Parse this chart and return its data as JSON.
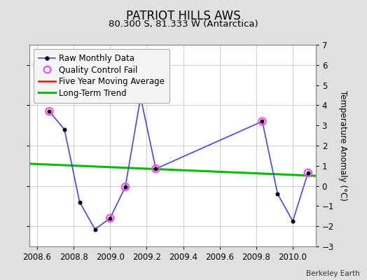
{
  "title": "PATRIOT HILLS AWS",
  "subtitle": "80.300 S, 81.333 W (Antarctica)",
  "attribution": "Berkeley Earth",
  "ylabel": "Temperature Anomaly (°C)",
  "xlim": [
    2008.558,
    2010.125
  ],
  "ylim": [
    -3,
    7
  ],
  "yticks": [
    -3,
    -2,
    -1,
    0,
    1,
    2,
    3,
    4,
    5,
    6,
    7
  ],
  "xticks": [
    2008.6,
    2008.8,
    2009.0,
    2009.2,
    2009.4,
    2009.6,
    2009.8,
    2010.0
  ],
  "raw_x": [
    2008.667,
    2008.75,
    2008.833,
    2008.917,
    2009.0,
    2009.083,
    2009.167,
    2009.25,
    2009.833,
    2009.917,
    2010.0,
    2010.083
  ],
  "raw_y": [
    3.7,
    2.8,
    -0.8,
    -2.15,
    -1.6,
    -0.05,
    4.4,
    0.85,
    3.2,
    -0.4,
    -1.75,
    0.65
  ],
  "qc_fail_x": [
    2008.667,
    2009.0,
    2009.083,
    2009.25,
    2009.833,
    2010.083
  ],
  "qc_fail_y": [
    3.7,
    -1.6,
    -0.05,
    0.85,
    3.2,
    0.65
  ],
  "trend_x": [
    2008.558,
    2010.125
  ],
  "trend_y": [
    1.1,
    0.5
  ],
  "raw_color": "#4444ff",
  "raw_marker_color": "#000000",
  "qc_color": "#ff44ff",
  "trend_color": "#00bb00",
  "moving_avg_color": "#ff0000",
  "bg_color": "#e0e0e0",
  "plot_bg_color": "#ffffff",
  "grid_color": "#c8c8c8",
  "title_fontsize": 12,
  "subtitle_fontsize": 9.5,
  "legend_fontsize": 8.5,
  "tick_fontsize": 8.5,
  "ylabel_fontsize": 8.5
}
